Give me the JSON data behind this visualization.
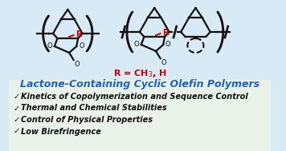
{
  "bg_color": "#d8eaf5",
  "bg_color_bottom": "#e8f2e8",
  "title_text": "Lactone-Containing Cyclic Olefin Polymers",
  "title_color": "#1a5fcc",
  "r_label_color": "#cc0000",
  "bullet_items": [
    "Kinetics of Copolymerization and Sequence Control",
    "Thermal and Chemical Stabilities",
    "Control of Physical Properties",
    "Low Birefringence"
  ],
  "bullet_color": "#111111",
  "checkmark": "✓",
  "lw": 1.6,
  "struct_color": "#111111",
  "R_color": "#cc0000",
  "figw": 3.56,
  "figh": 1.89,
  "dpi": 100
}
